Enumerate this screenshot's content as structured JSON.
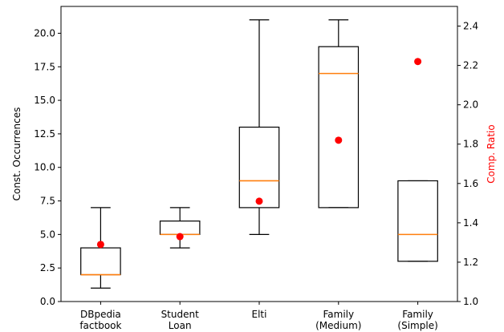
{
  "chart_data": {
    "type": "box",
    "categories": [
      "DBpedia\nfactbook",
      "Student\nLoan",
      "Elti",
      "Family\n(Medium)",
      "Family\n(Simple)"
    ],
    "ylabel_left": "Const. Occurrences",
    "ylabel_right": "Comp. Ratio",
    "ylim_left": [
      0,
      22
    ],
    "ylim_right": [
      1.0,
      2.5
    ],
    "yticks_left": [
      "0.0",
      "2.5",
      "5.0",
      "7.5",
      "10.0",
      "12.5",
      "15.0",
      "17.5",
      "20.0"
    ],
    "yticks_right": [
      "1.0",
      "1.2",
      "1.4",
      "1.6",
      "1.8",
      "2.0",
      "2.2",
      "2.4"
    ],
    "boxes": [
      {
        "whisker_low": 1,
        "q1": 2,
        "median": 2,
        "q3": 4,
        "whisker_high": 7
      },
      {
        "whisker_low": 4,
        "q1": 5,
        "median": 5,
        "q3": 6,
        "whisker_high": 7
      },
      {
        "whisker_low": 5,
        "q1": 7,
        "median": 9,
        "q3": 13,
        "whisker_high": 21
      },
      {
        "whisker_low": 7,
        "q1": 7,
        "median": 17,
        "q3": 19,
        "whisker_high": 21
      },
      {
        "whisker_low": 3,
        "q1": 3,
        "median": 5,
        "q3": 9,
        "whisker_high": 9
      }
    ],
    "comp_ratio": [
      1.29,
      1.33,
      1.51,
      1.82,
      2.22
    ],
    "colors": {
      "box": "#000000",
      "median": "#ff7f0e",
      "marker": "#ff0000",
      "right_label": "#ff0000"
    }
  }
}
